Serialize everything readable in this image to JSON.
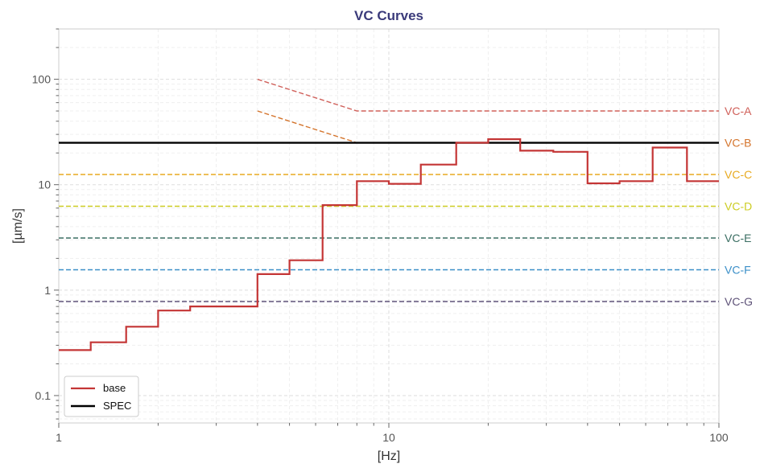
{
  "chart_data": {
    "type": "line",
    "title": "VC Curves",
    "xlabel": "[Hz]",
    "ylabel": "[µm/s]",
    "x_scale": "log",
    "y_scale": "log",
    "xlim": [
      1,
      100
    ],
    "ylim": [
      0.055,
      300
    ],
    "x_ticks": [
      {
        "value": 1,
        "label": "1"
      },
      {
        "value": 10,
        "label": "10"
      },
      {
        "value": 100,
        "label": "100"
      }
    ],
    "y_ticks": [
      {
        "value": 0.1,
        "label": "0.1"
      },
      {
        "value": 1,
        "label": "1"
      },
      {
        "value": 10,
        "label": "10"
      },
      {
        "value": 100,
        "label": "100"
      }
    ],
    "grid": true,
    "legend": {
      "position": "bottom-left",
      "entries": [
        "base",
        "SPEC"
      ]
    },
    "base": {
      "name": "base",
      "color": "#c43535",
      "edges": [
        1,
        1.25,
        1.6,
        2,
        2.5,
        3.15,
        4,
        5,
        6.3,
        8,
        10,
        12.5,
        16,
        20,
        25,
        31.5,
        40,
        50,
        63,
        80,
        100
      ],
      "values": [
        0.27,
        0.32,
        0.45,
        0.64,
        0.7,
        0.7,
        1.42,
        1.92,
        6.4,
        10.8,
        10.2,
        15.5,
        25.0,
        27.0,
        21.0,
        20.5,
        10.3,
        10.8,
        22.5,
        10.8
      ]
    },
    "spec": {
      "name": "SPEC",
      "value": 25,
      "color": "#000000"
    },
    "vc_curves": [
      {
        "label": "VC-A",
        "color": "#d0605a",
        "points": [
          [
            4,
            100
          ],
          [
            8,
            50
          ],
          [
            100,
            50
          ]
        ]
      },
      {
        "label": "VC-B",
        "color": "#d4742c",
        "points": [
          [
            4,
            50
          ],
          [
            8,
            25
          ],
          [
            100,
            25
          ]
        ]
      },
      {
        "label": "VC-C",
        "color": "#e8aa20",
        "points": [
          [
            1,
            12.5
          ],
          [
            100,
            12.5
          ]
        ]
      },
      {
        "label": "VC-D",
        "color": "#cccc22",
        "points": [
          [
            1,
            6.25
          ],
          [
            100,
            6.25
          ]
        ]
      },
      {
        "label": "VC-E",
        "color": "#3a6e62",
        "points": [
          [
            1,
            3.12
          ],
          [
            100,
            3.12
          ]
        ]
      },
      {
        "label": "VC-F",
        "color": "#3b8fc8",
        "points": [
          [
            1,
            1.56
          ],
          [
            100,
            1.56
          ]
        ]
      },
      {
        "label": "VC-G",
        "color": "#5e5278",
        "points": [
          [
            1,
            0.78
          ],
          [
            100,
            0.78
          ]
        ]
      }
    ]
  }
}
